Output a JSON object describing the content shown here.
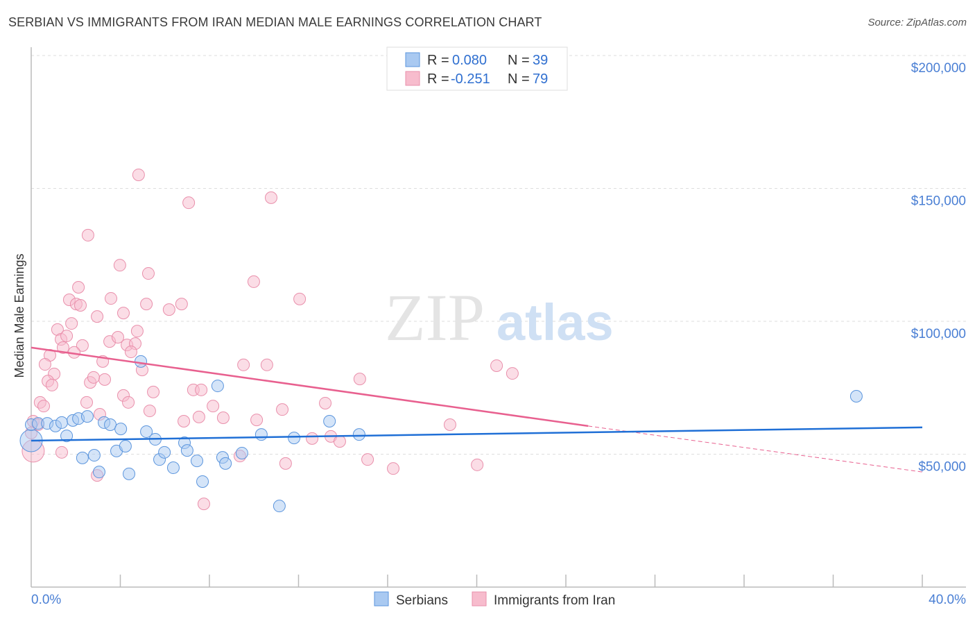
{
  "title": "SERBIAN VS IMMIGRANTS FROM IRAN MEDIAN MALE EARNINGS CORRELATION CHART",
  "source": "Source: ZipAtlas.com",
  "watermark": {
    "zip": "ZIP",
    "atlas": "atlas"
  },
  "colors": {
    "serbians_fill": "#a9c9f1",
    "serbians_stroke": "#5b95dd",
    "serbians_line": "#1f6fd6",
    "iran_fill": "#f7bccd",
    "iran_stroke": "#e98fab",
    "iran_line": "#e8608f",
    "axis_label": "#4a7fd4"
  },
  "legend": {
    "r_label": "R =",
    "n_label": "N =",
    "serbians": {
      "r": "0.080",
      "n": "39"
    },
    "iran": {
      "r": "-0.251",
      "n": "79"
    }
  },
  "chart_data": {
    "type": "scatter",
    "title": "SERBIAN VS IMMIGRANTS FROM IRAN MEDIAN MALE EARNINGS CORRELATION CHART",
    "xlabel": "",
    "ylabel": "Median Male Earnings",
    "xlim": [
      0,
      40
    ],
    "ylim": [
      0,
      210000
    ],
    "x_tick_labels": [
      "0.0%",
      "40.0%"
    ],
    "y_ticks": [
      {
        "value": 200000,
        "label": "$200,000"
      },
      {
        "value": 150000,
        "label": "$150,000"
      },
      {
        "value": 100000,
        "label": "$100,000"
      },
      {
        "value": 50000,
        "label": "$50,000"
      }
    ],
    "grid": true,
    "legend_position": "top-center",
    "series": [
      {
        "name": "Serbians",
        "trend": [
          [
            0,
            55100
          ],
          [
            40,
            60100
          ]
        ],
        "points": [
          [
            0,
            55100
          ],
          [
            0,
            61100
          ],
          [
            0.31,
            61600
          ],
          [
            0.72,
            61600
          ],
          [
            1.09,
            60600
          ],
          [
            1.37,
            61900
          ],
          [
            1.59,
            56900
          ],
          [
            1.87,
            62700
          ],
          [
            2.12,
            63400
          ],
          [
            2.3,
            48600
          ],
          [
            2.52,
            64200
          ],
          [
            2.83,
            49600
          ],
          [
            3.05,
            43300
          ],
          [
            3.27,
            61900
          ],
          [
            3.55,
            61100
          ],
          [
            3.83,
            51200
          ],
          [
            4.02,
            59500
          ],
          [
            4.23,
            53000
          ],
          [
            4.39,
            42600
          ],
          [
            4.92,
            84900
          ],
          [
            5.17,
            58500
          ],
          [
            5.57,
            55600
          ],
          [
            5.76,
            48000
          ],
          [
            5.98,
            50700
          ],
          [
            6.38,
            44900
          ],
          [
            6.88,
            54300
          ],
          [
            7.0,
            51400
          ],
          [
            7.44,
            47500
          ],
          [
            7.69,
            39700
          ],
          [
            8.37,
            75700
          ],
          [
            8.59,
            48800
          ],
          [
            8.72,
            46500
          ],
          [
            9.46,
            50400
          ],
          [
            10.33,
            57400
          ],
          [
            11.14,
            30500
          ],
          [
            11.8,
            56100
          ],
          [
            13.39,
            62400
          ],
          [
            14.72,
            57400
          ],
          [
            37.04,
            71800
          ]
        ]
      },
      {
        "name": "Immigrants from Iran",
        "trend": [
          [
            0,
            90100
          ],
          [
            25,
            60600
          ]
        ],
        "trend_extrapolated": [
          [
            25,
            60600
          ],
          [
            40,
            43300
          ]
        ],
        "points": [
          [
            4.82,
            155100
          ],
          [
            7.07,
            144600
          ],
          [
            10.77,
            146500
          ],
          [
            2.55,
            132400
          ],
          [
            3.98,
            121100
          ],
          [
            5.26,
            118000
          ],
          [
            9.99,
            114900
          ],
          [
            2.12,
            112800
          ],
          [
            1.71,
            108100
          ],
          [
            3.58,
            108600
          ],
          [
            5.17,
            106500
          ],
          [
            6.75,
            106500
          ],
          [
            12.05,
            108400
          ],
          [
            2.02,
            106500
          ],
          [
            2.21,
            106000
          ],
          [
            6.19,
            104400
          ],
          [
            2.96,
            101800
          ],
          [
            4.14,
            103100
          ],
          [
            1.81,
            99200
          ],
          [
            1.18,
            96900
          ],
          [
            4.76,
            96300
          ],
          [
            1.34,
            93200
          ],
          [
            1.59,
            94500
          ],
          [
            3.52,
            92400
          ],
          [
            3.89,
            94000
          ],
          [
            2.3,
            90900
          ],
          [
            4.3,
            91100
          ],
          [
            4.67,
            91600
          ],
          [
            1.43,
            90100
          ],
          [
            1.93,
            88300
          ],
          [
            4.48,
            88500
          ],
          [
            0.84,
            87200
          ],
          [
            3.21,
            84900
          ],
          [
            4.98,
            81700
          ],
          [
            0.62,
            83800
          ],
          [
            1.03,
            80200
          ],
          [
            9.53,
            83600
          ],
          [
            10.58,
            83600
          ],
          [
            0.75,
            77500
          ],
          [
            0.93,
            76000
          ],
          [
            2.65,
            77000
          ],
          [
            3.3,
            78100
          ],
          [
            2.8,
            78900
          ],
          [
            14.75,
            78300
          ],
          [
            20.89,
            83300
          ],
          [
            21.6,
            80400
          ],
          [
            4.14,
            72100
          ],
          [
            5.48,
            73400
          ],
          [
            7.28,
            74200
          ],
          [
            7.63,
            74200
          ],
          [
            0.4,
            69500
          ],
          [
            0.56,
            68100
          ],
          [
            2.49,
            69500
          ],
          [
            4.36,
            69500
          ],
          [
            8.16,
            68100
          ],
          [
            13.2,
            69200
          ],
          [
            11.27,
            66800
          ],
          [
            3.08,
            65000
          ],
          [
            5.32,
            66300
          ],
          [
            6.85,
            62400
          ],
          [
            7.53,
            64000
          ],
          [
            8.62,
            63700
          ],
          [
            10.12,
            62900
          ],
          [
            18.8,
            61100
          ],
          [
            0.09,
            62400
          ],
          [
            0.31,
            61100
          ],
          [
            0.09,
            51200
          ],
          [
            1.37,
            50700
          ],
          [
            2.96,
            42000
          ],
          [
            7.75,
            31300
          ],
          [
            11.42,
            46500
          ],
          [
            12.61,
            55900
          ],
          [
            13.45,
            56700
          ],
          [
            13.85,
            54800
          ],
          [
            15.1,
            48000
          ],
          [
            16.25,
            44600
          ],
          [
            20.02,
            46000
          ],
          [
            9.37,
            49300
          ],
          [
            0,
            58000
          ]
        ]
      }
    ]
  }
}
